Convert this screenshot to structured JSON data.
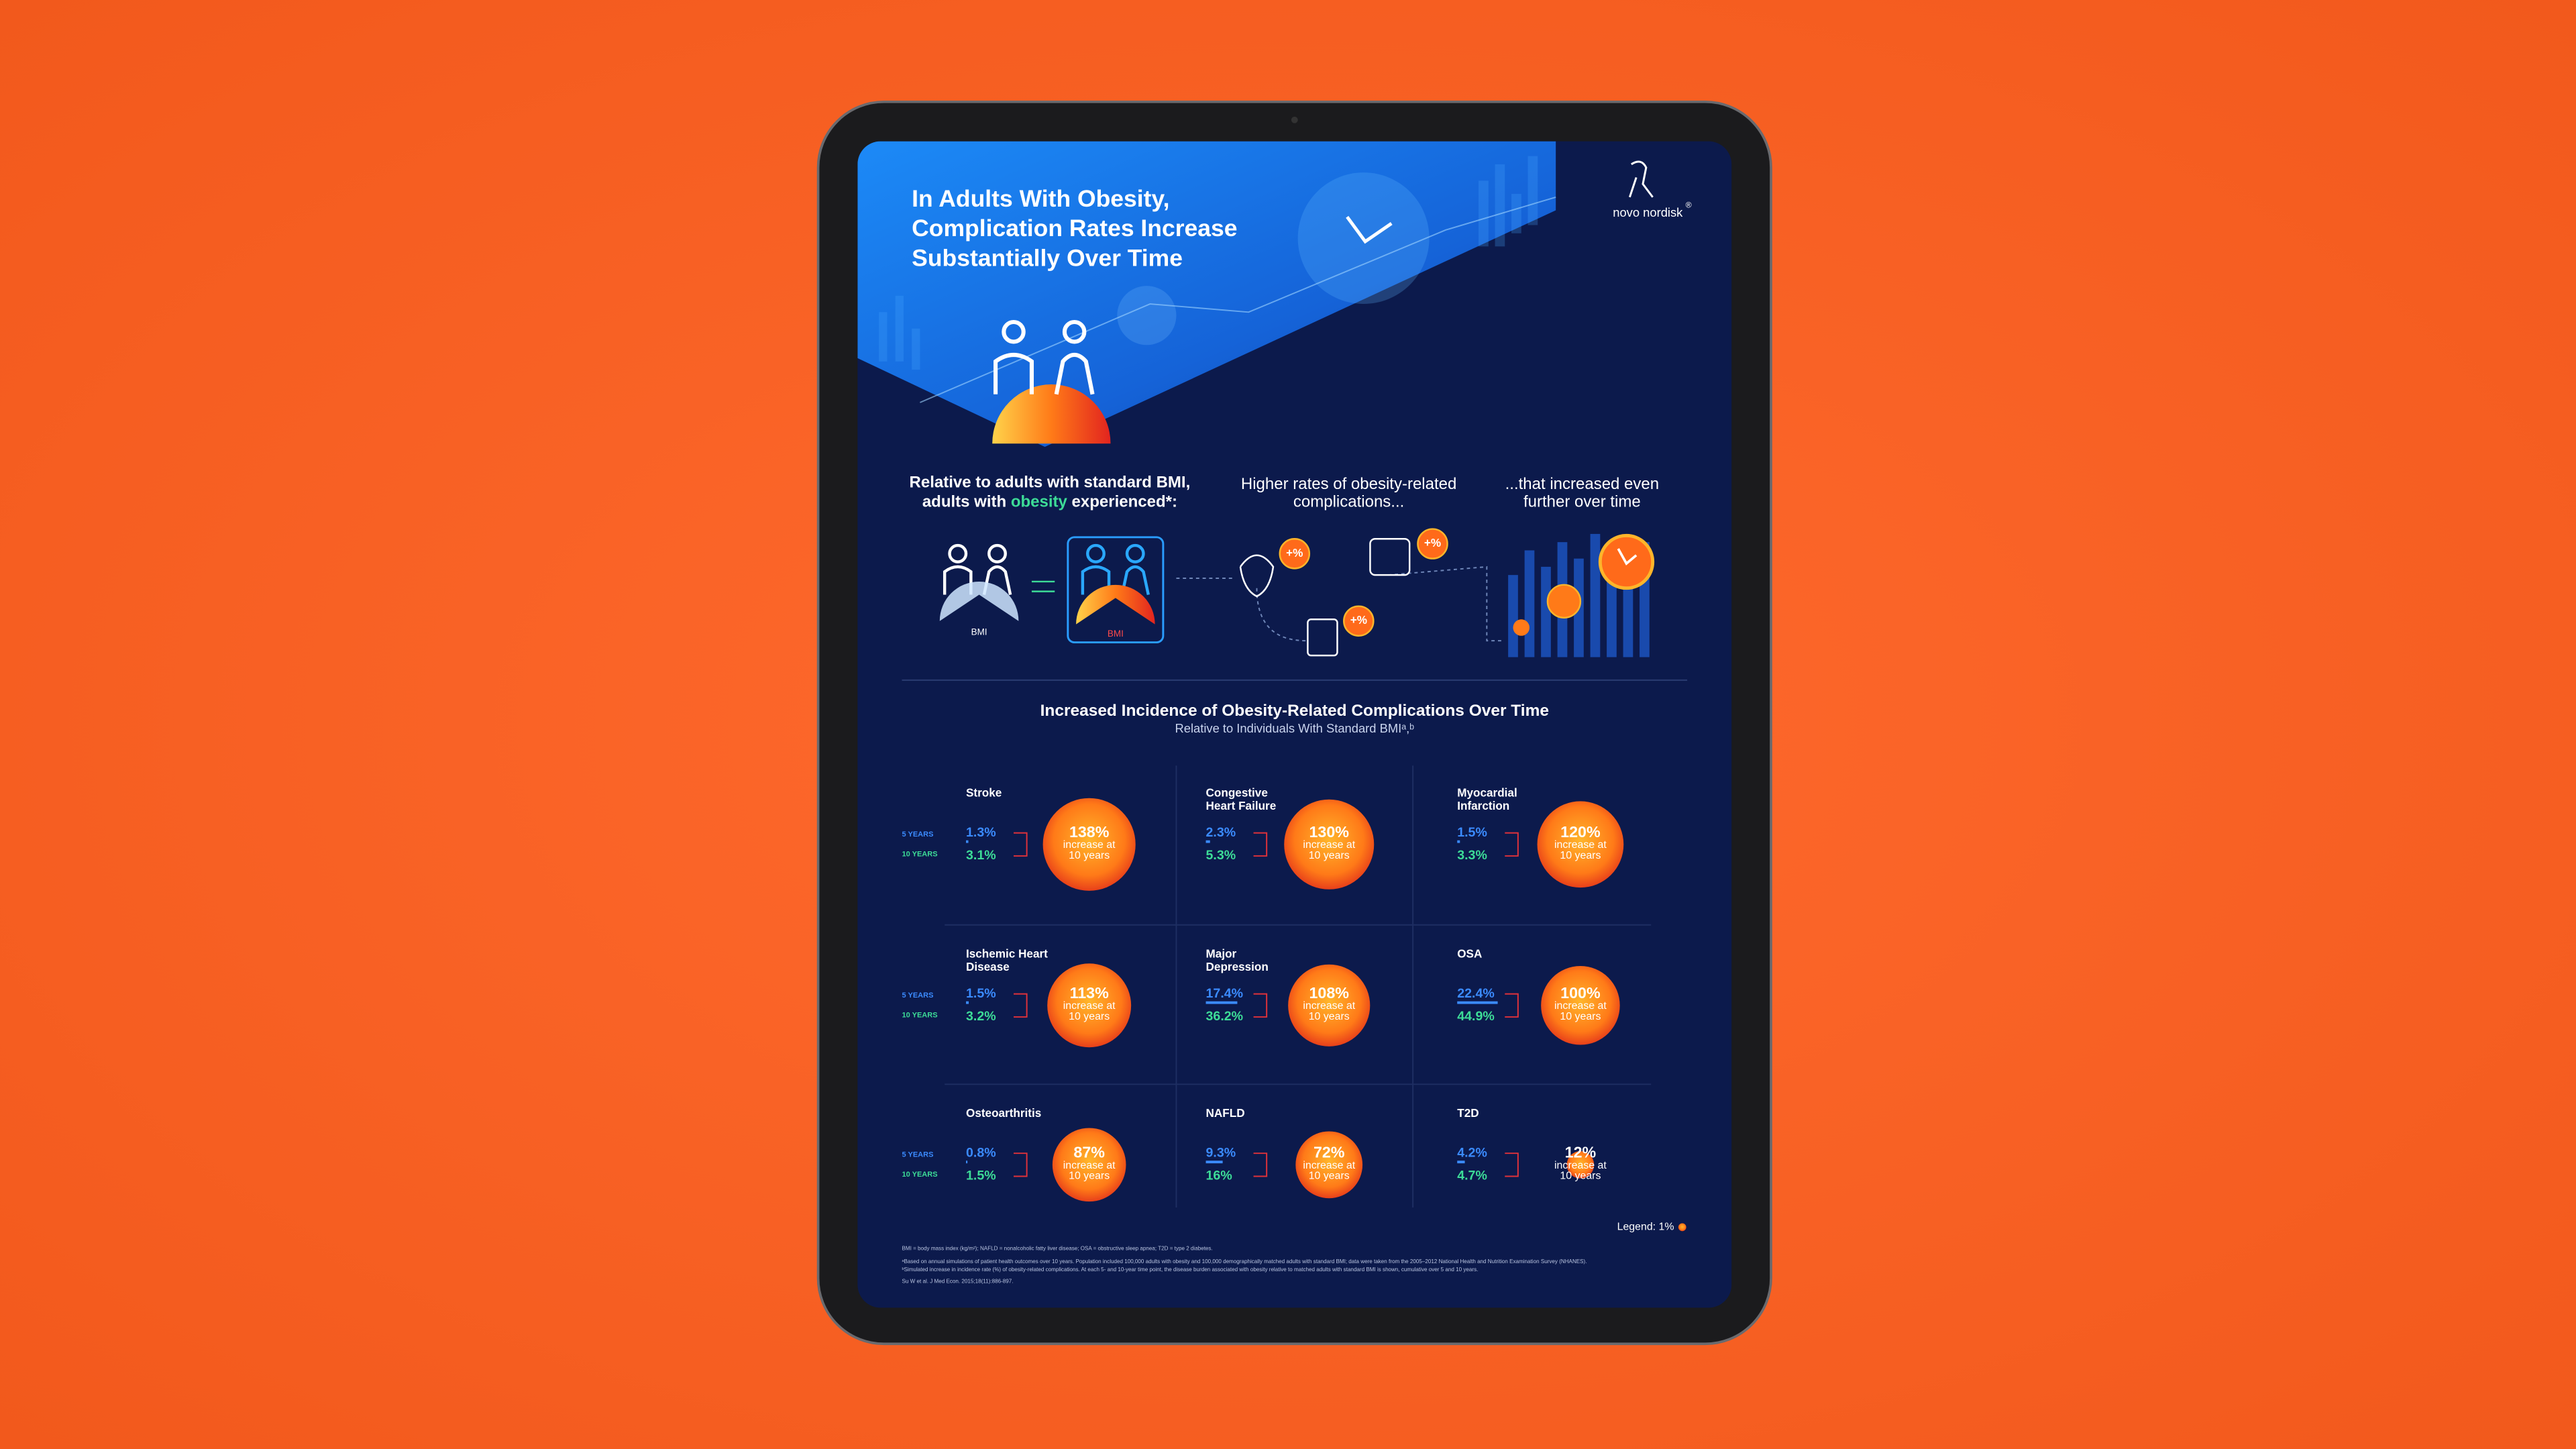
{
  "header": {
    "title_lines": [
      "In Adults With Obesity,",
      "Complication Rates Increase",
      "Substantially Over Time"
    ],
    "brand": "novo nordisk",
    "brand_mark": "®"
  },
  "intro": {
    "col1_line1": "Relative to adults with standard BMI,",
    "col1_line2_pre": "adults with ",
    "col1_line2_em": "obesity",
    "col1_line2_post": " experienced*:",
    "col2_lines": [
      "Higher rates of obesity-related",
      "complications..."
    ],
    "col3_lines": [
      "...that increased even",
      "further over time"
    ],
    "bmi_label": "BMI",
    "badge": "+%"
  },
  "chart": {
    "title": "Increased Incidence of Obesity-Related Complications Over Time",
    "subtitle": "Relative to Individuals With Standard BMIᵃ,ᵇ",
    "year_labels": [
      "5 YEARS",
      "10 YEARS"
    ],
    "circle_caption": [
      "increase at",
      "10 years"
    ],
    "legend_label": "Legend: 1%",
    "legend_value": 1,
    "complications": [
      {
        "name_lines": [
          "Stroke"
        ],
        "five_year": {
          "value": 1.3,
          "label": "1.3%"
        },
        "ten_year": {
          "value": 3.1,
          "label": "3.1%"
        },
        "increase": {
          "value": 138,
          "label": "138%"
        }
      },
      {
        "name_lines": [
          "Congestive",
          "Heart Failure"
        ],
        "five_year": {
          "value": 2.3,
          "label": "2.3%"
        },
        "ten_year": {
          "value": 5.3,
          "label": "5.3%"
        },
        "increase": {
          "value": 130,
          "label": "130%"
        }
      },
      {
        "name_lines": [
          "Myocardial",
          "Infarction"
        ],
        "five_year": {
          "value": 1.5,
          "label": "1.5%"
        },
        "ten_year": {
          "value": 3.3,
          "label": "3.3%"
        },
        "increase": {
          "value": 120,
          "label": "120%"
        }
      },
      {
        "name_lines": [
          "Ischemic Heart",
          "Disease"
        ],
        "five_year": {
          "value": 1.5,
          "label": "1.5%"
        },
        "ten_year": {
          "value": 3.2,
          "label": "3.2%"
        },
        "increase": {
          "value": 113,
          "label": "113%"
        }
      },
      {
        "name_lines": [
          "Major",
          "Depression"
        ],
        "five_year": {
          "value": 17.4,
          "label": "17.4%"
        },
        "ten_year": {
          "value": 36.2,
          "label": "36.2%"
        },
        "increase": {
          "value": 108,
          "label": "108%"
        }
      },
      {
        "name_lines": [
          "OSA"
        ],
        "five_year": {
          "value": 22.4,
          "label": "22.4%"
        },
        "ten_year": {
          "value": 44.9,
          "label": "44.9%"
        },
        "increase": {
          "value": 100,
          "label": "100%"
        }
      },
      {
        "name_lines": [
          "Osteoarthritis"
        ],
        "five_year": {
          "value": 0.8,
          "label": "0.8%"
        },
        "ten_year": {
          "value": 1.5,
          "label": "1.5%"
        },
        "increase": {
          "value": 87,
          "label": "87%"
        }
      },
      {
        "name_lines": [
          "NAFLD"
        ],
        "five_year": {
          "value": 9.3,
          "label": "9.3%"
        },
        "ten_year": {
          "value": 16,
          "label": "16%"
        },
        "increase": {
          "value": 72,
          "label": "72%"
        }
      },
      {
        "name_lines": [
          "T2D"
        ],
        "five_year": {
          "value": 4.2,
          "label": "4.2%"
        },
        "ten_year": {
          "value": 4.7,
          "label": "4.7%"
        },
        "increase": {
          "value": 12,
          "label": "12%"
        }
      }
    ]
  },
  "footnotes": [
    "BMI = body mass index (kg/m²); NAFLD = nonalcoholic fatty liver disease; OSA = obstructive sleep apnea; T2D = type 2 diabetes.",
    "ᵃBased on annual simulations of patient health outcomes over 10 years. Population included 100,000 adults with obesity and 100,000 demographically matched adults with standard BMI; data were taken from the 2005–2012 National Health and Nutrition Examination Survey (NHANES).",
    "ᵇSimulated increase in incidence rate (%) of obesity-related complications. At each 5- and 10-year time point, the disease burden associated with obesity relative to matched adults with standard BMI is shown, cumulative over 5 and 10 years.",
    "Su W et al. J Med Econ. 2015;18(11):886-897."
  ]
}
